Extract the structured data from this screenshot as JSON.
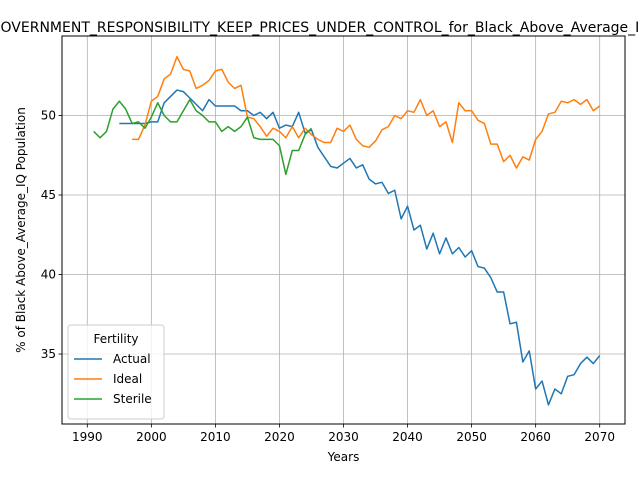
{
  "chart_data": {
    "type": "line",
    "title": "GOVERNMENT_RESPONSIBILITY_KEEP_PRICES_UNDER_CONTROL_for_Black_Above_Average_IQ",
    "xlabel": "Years",
    "ylabel": "% of Black Above_Average_IQ Population",
    "xlim": [
      1986.05,
      2073.95
    ],
    "ylim": [
      30.6,
      55.0
    ],
    "xticks": [
      1990,
      2000,
      2010,
      2020,
      2030,
      2040,
      2050,
      2060,
      2070
    ],
    "yticks": [
      35,
      40,
      45,
      50
    ],
    "grid": true,
    "legend": {
      "title": "Fertility",
      "placement": "lower-left"
    },
    "series": [
      {
        "name": "Actual",
        "color": "#1f77b4",
        "x": [
          1995,
          1996,
          1997,
          1998,
          1999,
          2000,
          2001,
          2002,
          2003,
          2004,
          2005,
          2006,
          2007,
          2008,
          2009,
          2010,
          2011,
          2012,
          2013,
          2014,
          2015,
          2016,
          2017,
          2018,
          2019,
          2020,
          2021,
          2022,
          2023,
          2024,
          2025,
          2026,
          2027,
          2028,
          2029,
          2030,
          2031,
          2032,
          2033,
          2034,
          2035,
          2036,
          2037,
          2038,
          2039,
          2040,
          2041,
          2042,
          2043,
          2044,
          2045,
          2046,
          2047,
          2048,
          2049,
          2050,
          2051,
          2052,
          2053,
          2054,
          2055,
          2056,
          2057,
          2058,
          2059,
          2060,
          2061,
          2062,
          2063,
          2064,
          2065,
          2066,
          2067,
          2068,
          2069,
          2070
        ],
        "values": [
          49.5,
          49.5,
          49.5,
          49.5,
          49.5,
          49.6,
          49.6,
          50.8,
          51.2,
          51.6,
          51.5,
          51.1,
          50.7,
          50.3,
          51.0,
          50.6,
          50.6,
          50.6,
          50.6,
          50.3,
          50.3,
          50.0,
          50.2,
          49.8,
          50.2,
          49.2,
          49.4,
          49.3,
          50.2,
          48.9,
          49.1,
          48.0,
          47.4,
          46.8,
          46.7,
          47.0,
          47.3,
          46.7,
          46.9,
          46.0,
          45.7,
          45.8,
          45.1,
          45.3,
          43.5,
          44.3,
          42.8,
          43.1,
          41.6,
          42.6,
          41.3,
          42.3,
          41.3,
          41.7,
          41.1,
          41.5,
          40.5,
          40.4,
          39.8,
          38.9,
          38.9,
          36.9,
          37.0,
          34.5,
          35.2,
          32.8,
          33.3,
          31.8,
          32.8,
          32.5,
          33.6,
          33.7,
          34.4,
          34.8,
          34.4,
          34.9
        ]
      },
      {
        "name": "Ideal",
        "color": "#ff7f0e",
        "x": [
          1997,
          1998,
          1999,
          2000,
          2001,
          2002,
          2003,
          2004,
          2005,
          2006,
          2007,
          2008,
          2009,
          2010,
          2011,
          2012,
          2013,
          2014,
          2015,
          2016,
          2017,
          2018,
          2019,
          2020,
          2021,
          2022,
          2023,
          2024,
          2025,
          2026,
          2027,
          2028,
          2029,
          2030,
          2031,
          2032,
          2033,
          2034,
          2035,
          2036,
          2037,
          2038,
          2039,
          2040,
          2041,
          2042,
          2043,
          2044,
          2045,
          2046,
          2047,
          2048,
          2049,
          2050,
          2051,
          2052,
          2053,
          2054,
          2055,
          2056,
          2057,
          2058,
          2059,
          2060,
          2061,
          2062,
          2063,
          2064,
          2065,
          2066,
          2067,
          2068,
          2069,
          2070
        ],
        "values": [
          48.5,
          48.5,
          49.4,
          50.9,
          51.2,
          52.3,
          52.6,
          53.7,
          52.9,
          52.8,
          51.7,
          51.9,
          52.2,
          52.8,
          52.9,
          52.1,
          51.7,
          51.9,
          49.9,
          49.8,
          49.3,
          48.7,
          49.2,
          49.0,
          48.6,
          49.3,
          48.6,
          49.2,
          48.8,
          48.5,
          48.3,
          48.3,
          49.2,
          49.0,
          49.4,
          48.5,
          48.1,
          48.0,
          48.4,
          49.1,
          49.3,
          50.0,
          49.8,
          50.3,
          50.2,
          51.0,
          50.0,
          50.3,
          49.3,
          49.6,
          48.3,
          50.8,
          50.3,
          50.3,
          49.7,
          49.5,
          48.2,
          48.2,
          47.1,
          47.5,
          46.7,
          47.4,
          47.2,
          48.5,
          49.0,
          50.1,
          50.2,
          50.9,
          50.8,
          51.0,
          50.7,
          51.0,
          50.3,
          50.6
        ]
      },
      {
        "name": "Sterile",
        "color": "#2ca02c",
        "x": [
          1991,
          1992,
          1993,
          1994,
          1995,
          1996,
          1997,
          1998,
          1999,
          2000,
          2001,
          2002,
          2003,
          2004,
          2005,
          2006,
          2007,
          2008,
          2009,
          2010,
          2011,
          2012,
          2013,
          2014,
          2015,
          2016,
          2017,
          2018,
          2019,
          2020,
          2021,
          2022,
          2023,
          2024,
          2025
        ],
        "values": [
          49.0,
          48.6,
          49.0,
          50.4,
          50.9,
          50.4,
          49.5,
          49.6,
          49.2,
          49.9,
          50.8,
          50.0,
          49.6,
          49.6,
          50.3,
          51.0,
          50.3,
          50.0,
          49.6,
          49.6,
          49.0,
          49.3,
          49.0,
          49.3,
          49.9,
          48.6,
          48.5,
          48.5,
          48.5,
          48.1,
          46.3,
          47.8,
          47.8,
          48.8,
          49.2
        ]
      }
    ]
  }
}
